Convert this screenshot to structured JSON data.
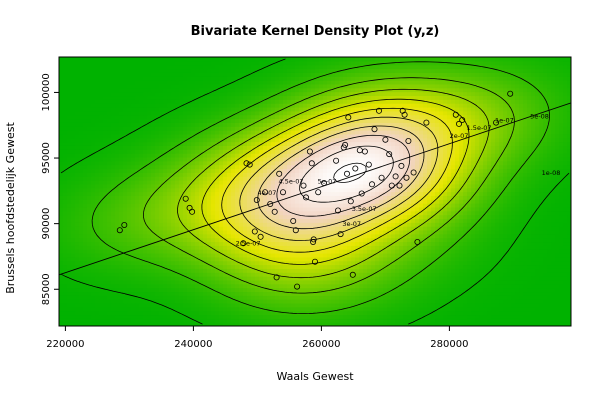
{
  "chart_data": {
    "type": "contour",
    "title": "Bivariate Kernel Density Plot (y,z)",
    "xlabel": "Waals Gewest",
    "ylabel": "Brussels hoofdstedelijk Gewest",
    "xlim": [
      219000,
      299000
    ],
    "ylim": [
      82200,
      102700
    ],
    "x_ticks": [
      220000,
      240000,
      260000,
      280000
    ],
    "x_tick_labels": [
      "220000",
      "240000",
      "260000",
      "280000"
    ],
    "y_ticks": [
      85000,
      90000,
      95000,
      100000
    ],
    "y_tick_labels": [
      "85000",
      "90000",
      "95000",
      "100000"
    ],
    "contour_levels": [
      {
        "value": 1e-08,
        "label": "1e-08"
      },
      {
        "value": 5e-08,
        "label": "5e-08"
      },
      {
        "value": 1e-07,
        "label": "1e-07"
      },
      {
        "value": 1.5e-07,
        "label": "1.5e-07"
      },
      {
        "value": 2e-07,
        "label": "2e-07"
      },
      {
        "value": 2.5e-07,
        "label": "2.5e-07"
      },
      {
        "value": 3e-07,
        "label": "3e-07"
      },
      {
        "value": 3.5e-07,
        "label": "3.5e-07"
      },
      {
        "value": 4e-07,
        "label": "4e-07"
      },
      {
        "value": 4.5e-07,
        "label": "4.5e-07"
      },
      {
        "value": 5e-07,
        "label": "5e-07"
      }
    ],
    "points": [
      [
        228500,
        89500
      ],
      [
        229200,
        89900
      ],
      [
        238800,
        91900
      ],
      [
        239400,
        91200
      ],
      [
        239800,
        90900
      ],
      [
        247800,
        88500
      ],
      [
        248300,
        94600
      ],
      [
        248800,
        94500
      ],
      [
        249600,
        89400
      ],
      [
        249900,
        91800
      ],
      [
        250500,
        89000
      ],
      [
        251200,
        92400
      ],
      [
        252000,
        91500
      ],
      [
        252700,
        90900
      ],
      [
        253000,
        85900
      ],
      [
        253400,
        93800
      ],
      [
        254000,
        92400
      ],
      [
        255600,
        90200
      ],
      [
        256000,
        89500
      ],
      [
        256200,
        85200
      ],
      [
        257200,
        92900
      ],
      [
        257600,
        92000
      ],
      [
        258200,
        95500
      ],
      [
        258500,
        94600
      ],
      [
        258700,
        88600
      ],
      [
        258800,
        88800
      ],
      [
        259000,
        87100
      ],
      [
        259500,
        92400
      ],
      [
        260400,
        93100
      ],
      [
        262300,
        94800
      ],
      [
        262600,
        91000
      ],
      [
        263000,
        89200
      ],
      [
        263500,
        95800
      ],
      [
        263700,
        96000
      ],
      [
        264000,
        93800
      ],
      [
        264200,
        98100
      ],
      [
        264600,
        91700
      ],
      [
        264900,
        86100
      ],
      [
        265300,
        94200
      ],
      [
        266000,
        95600
      ],
      [
        266300,
        92300
      ],
      [
        266800,
        95500
      ],
      [
        267400,
        94500
      ],
      [
        267900,
        93000
      ],
      [
        268300,
        97200
      ],
      [
        269000,
        98600
      ],
      [
        269400,
        93500
      ],
      [
        270000,
        96400
      ],
      [
        270600,
        95300
      ],
      [
        271000,
        92900
      ],
      [
        271600,
        93600
      ],
      [
        272200,
        92900
      ],
      [
        272500,
        94400
      ],
      [
        272700,
        98600
      ],
      [
        273000,
        98300
      ],
      [
        273300,
        93500
      ],
      [
        273600,
        96300
      ],
      [
        274400,
        93900
      ],
      [
        275000,
        88600
      ],
      [
        276400,
        97700
      ],
      [
        281000,
        98300
      ],
      [
        281500,
        97600
      ],
      [
        282000,
        97900
      ],
      [
        287300,
        97700
      ],
      [
        289500,
        99900
      ]
    ],
    "regression_line": [
      [
        219000,
        86100
      ],
      [
        299000,
        99200
      ]
    ],
    "grid": false,
    "legend": "none",
    "colors": {
      "background": "#00b200",
      "density_low": "#00b200",
      "density_mid": "#e6e600",
      "density_high": "#f2d4c3",
      "density_peak": "#ffffff",
      "lines": "#000000"
    }
  }
}
